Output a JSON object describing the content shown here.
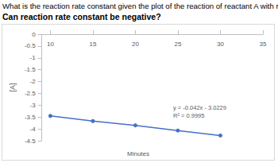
{
  "chart_data": {
    "type": "line",
    "title": "What is the reaction rate constant given the plot of the reaction of reactant A with respect to time?",
    "subtitle": "Can reaction rate constant be negative?",
    "x_label": "Minutes",
    "y_label": "[A]",
    "x": [
      10,
      15,
      20,
      25,
      30
    ],
    "values": [
      -3.45,
      -3.67,
      -3.85,
      -4.07,
      -4.28
    ],
    "color": "#4472c4",
    "marker": "circle",
    "xlim": [
      9,
      35
    ],
    "xticks": [
      10,
      15,
      20,
      25,
      30,
      35
    ],
    "ylim": [
      -4.5,
      0
    ],
    "yticks": [
      0,
      -0.5,
      -1,
      -1.5,
      -2,
      -2.5,
      -3,
      -3.5,
      -4,
      -4.5
    ],
    "annotations": [
      "y = -0.042x - 3.0229",
      "R² = 0.9995"
    ],
    "grid": false
  }
}
